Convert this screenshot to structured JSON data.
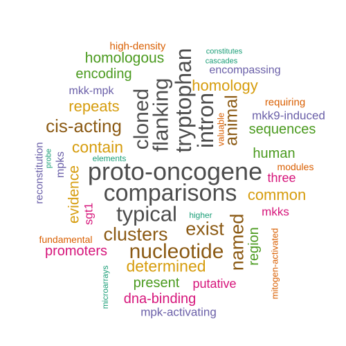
{
  "palette": {
    "gray": "#4d4d4d",
    "brown": "#8b5a14",
    "orange": "#d95f02",
    "green": "#4a9a1e",
    "teal": "#1b9e77",
    "purple": "#6a5fa8",
    "magenta": "#d6147a",
    "gold": "#d69c0c"
  },
  "words": [
    {
      "text": "proto-oncogene",
      "color": "gray"
    },
    {
      "text": "comparisons",
      "color": "gray"
    },
    {
      "text": "typical",
      "color": "gray"
    },
    {
      "text": "tryptophan",
      "color": "gray"
    },
    {
      "text": "flanking",
      "color": "gray"
    },
    {
      "text": "cloned",
      "color": "gray"
    },
    {
      "text": "intron",
      "color": "gray"
    },
    {
      "text": "nucleotide",
      "color": "brown"
    },
    {
      "text": "clusters",
      "color": "brown"
    },
    {
      "text": "exist",
      "color": "brown"
    },
    {
      "text": "named",
      "color": "brown"
    },
    {
      "text": "cis-acting",
      "color": "brown"
    },
    {
      "text": "animal",
      "color": "brown"
    },
    {
      "text": "homology",
      "color": "gold"
    },
    {
      "text": "determined",
      "color": "gold"
    },
    {
      "text": "contain",
      "color": "gold"
    },
    {
      "text": "repeats",
      "color": "gold"
    },
    {
      "text": "common",
      "color": "gold"
    },
    {
      "text": "evidence",
      "color": "gold"
    },
    {
      "text": "homologous",
      "color": "green"
    },
    {
      "text": "encoding",
      "color": "green"
    },
    {
      "text": "sequences",
      "color": "green"
    },
    {
      "text": "human",
      "color": "green"
    },
    {
      "text": "present",
      "color": "green"
    },
    {
      "text": "region",
      "color": "green"
    },
    {
      "text": "high-density",
      "color": "orange"
    },
    {
      "text": "requiring",
      "color": "orange"
    },
    {
      "text": "valuable",
      "color": "orange"
    },
    {
      "text": "modules",
      "color": "orange"
    },
    {
      "text": "fundamental",
      "color": "orange"
    },
    {
      "text": "mitogen-activated",
      "color": "orange"
    },
    {
      "text": "constitutes",
      "color": "teal"
    },
    {
      "text": "cascades",
      "color": "teal"
    },
    {
      "text": "elements",
      "color": "teal"
    },
    {
      "text": "probe",
      "color": "teal"
    },
    {
      "text": "higher",
      "color": "teal"
    },
    {
      "text": "microarrays",
      "color": "teal"
    },
    {
      "text": "encompassing",
      "color": "purple"
    },
    {
      "text": "mkk-mpk",
      "color": "purple"
    },
    {
      "text": "mkk9-induced",
      "color": "purple"
    },
    {
      "text": "reconstitution",
      "color": "purple"
    },
    {
      "text": "mpks",
      "color": "purple"
    },
    {
      "text": "mpk-activating",
      "color": "purple"
    },
    {
      "text": "three",
      "color": "magenta"
    },
    {
      "text": "mkks",
      "color": "magenta"
    },
    {
      "text": "sgt1",
      "color": "magenta"
    },
    {
      "text": "promoters",
      "color": "magenta"
    },
    {
      "text": "putative",
      "color": "magenta"
    },
    {
      "text": "dna-binding",
      "color": "magenta"
    }
  ]
}
